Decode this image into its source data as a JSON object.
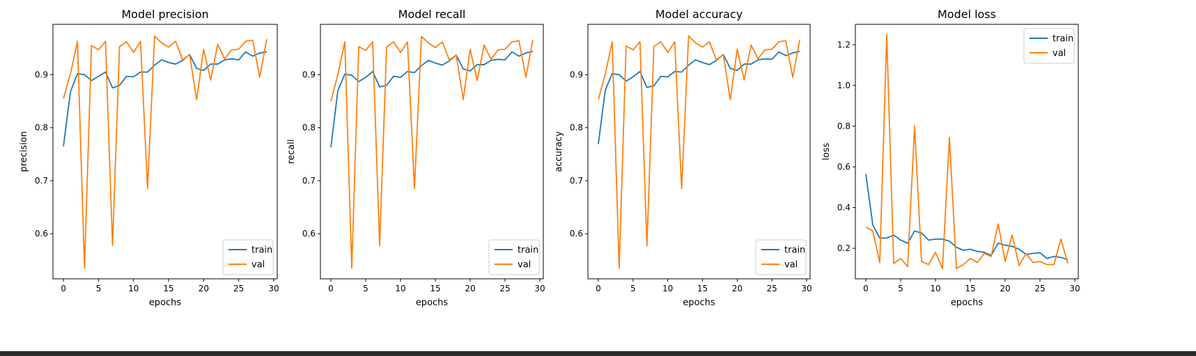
{
  "chart_data": [
    {
      "type": "line",
      "title": "Model precision",
      "xlabel": "epochs",
      "ylabel": "precision",
      "xlim": [
        -1.5,
        30.5
      ],
      "ylim": [
        0.515,
        0.995
      ],
      "xticks": [
        0,
        5,
        10,
        15,
        20,
        25,
        30
      ],
      "yticks": [
        0.6,
        0.7,
        0.8,
        0.9
      ],
      "ytick_labels": [
        "0.6",
        "0.7",
        "0.8",
        "0.9"
      ],
      "legend_position": "lower-right",
      "x": [
        0,
        1,
        2,
        3,
        4,
        5,
        6,
        7,
        8,
        9,
        10,
        11,
        12,
        13,
        14,
        15,
        16,
        17,
        18,
        19,
        20,
        21,
        22,
        23,
        24,
        25,
        26,
        27,
        28,
        29
      ],
      "series": [
        {
          "name": "train",
          "color": "#1f77b4",
          "values": [
            0.765,
            0.868,
            0.902,
            0.9,
            0.889,
            0.897,
            0.905,
            0.875,
            0.88,
            0.897,
            0.896,
            0.905,
            0.905,
            0.918,
            0.928,
            0.923,
            0.92,
            0.927,
            0.938,
            0.912,
            0.908,
            0.92,
            0.92,
            0.928,
            0.93,
            0.928,
            0.943,
            0.935,
            0.941,
            0.943
          ]
        },
        {
          "name": "val",
          "color": "#ff7f0e",
          "values": [
            0.855,
            0.902,
            0.963,
            0.535,
            0.955,
            0.947,
            0.963,
            0.578,
            0.953,
            0.962,
            0.942,
            0.963,
            0.685,
            0.973,
            0.96,
            0.952,
            0.963,
            0.928,
            0.938,
            0.853,
            0.948,
            0.89,
            0.957,
            0.93,
            0.947,
            0.948,
            0.963,
            0.965,
            0.895,
            0.967
          ]
        }
      ]
    },
    {
      "type": "line",
      "title": "Model recall",
      "xlabel": "epochs",
      "ylabel": "recall",
      "xlim": [
        -1.5,
        30.5
      ],
      "ylim": [
        0.515,
        0.995
      ],
      "xticks": [
        0,
        5,
        10,
        15,
        20,
        25,
        30
      ],
      "yticks": [
        0.6,
        0.7,
        0.8,
        0.9
      ],
      "ytick_labels": [
        "0.6",
        "0.7",
        "0.8",
        "0.9"
      ],
      "legend_position": "lower-right",
      "x": [
        0,
        1,
        2,
        3,
        4,
        5,
        6,
        7,
        8,
        9,
        10,
        11,
        12,
        13,
        14,
        15,
        16,
        17,
        18,
        19,
        20,
        21,
        22,
        23,
        24,
        25,
        26,
        27,
        28,
        29
      ],
      "series": [
        {
          "name": "train",
          "color": "#1f77b4",
          "values": [
            0.763,
            0.87,
            0.901,
            0.899,
            0.887,
            0.895,
            0.906,
            0.877,
            0.88,
            0.897,
            0.895,
            0.906,
            0.904,
            0.917,
            0.927,
            0.922,
            0.918,
            0.926,
            0.937,
            0.911,
            0.907,
            0.919,
            0.919,
            0.927,
            0.929,
            0.928,
            0.943,
            0.935,
            0.941,
            0.944
          ]
        },
        {
          "name": "val",
          "color": "#ff7f0e",
          "values": [
            0.85,
            0.9,
            0.962,
            0.535,
            0.953,
            0.946,
            0.962,
            0.578,
            0.952,
            0.962,
            0.942,
            0.962,
            0.685,
            0.972,
            0.96,
            0.951,
            0.962,
            0.928,
            0.937,
            0.853,
            0.948,
            0.889,
            0.956,
            0.929,
            0.947,
            0.948,
            0.962,
            0.964,
            0.895,
            0.966
          ]
        }
      ]
    },
    {
      "type": "line",
      "title": "Model accuracy",
      "xlabel": "epochs",
      "ylabel": "accuracy",
      "xlim": [
        -1.5,
        30.5
      ],
      "ylim": [
        0.515,
        0.995
      ],
      "xticks": [
        0,
        5,
        10,
        15,
        20,
        25,
        30
      ],
      "yticks": [
        0.6,
        0.7,
        0.8,
        0.9
      ],
      "ytick_labels": [
        "0.6",
        "0.7",
        "0.8",
        "0.9"
      ],
      "legend_position": "lower-right",
      "x": [
        0,
        1,
        2,
        3,
        4,
        5,
        6,
        7,
        8,
        9,
        10,
        11,
        12,
        13,
        14,
        15,
        16,
        17,
        18,
        19,
        20,
        21,
        22,
        23,
        24,
        25,
        26,
        27,
        28,
        29
      ],
      "series": [
        {
          "name": "train",
          "color": "#1f77b4",
          "values": [
            0.769,
            0.871,
            0.902,
            0.9,
            0.888,
            0.896,
            0.906,
            0.876,
            0.879,
            0.897,
            0.896,
            0.906,
            0.905,
            0.918,
            0.928,
            0.923,
            0.919,
            0.927,
            0.938,
            0.912,
            0.908,
            0.92,
            0.92,
            0.928,
            0.93,
            0.929,
            0.943,
            0.936,
            0.941,
            0.944
          ]
        },
        {
          "name": "val",
          "color": "#ff7f0e",
          "values": [
            0.853,
            0.901,
            0.962,
            0.535,
            0.954,
            0.947,
            0.962,
            0.577,
            0.953,
            0.962,
            0.942,
            0.962,
            0.685,
            0.973,
            0.96,
            0.952,
            0.962,
            0.928,
            0.938,
            0.853,
            0.948,
            0.89,
            0.956,
            0.93,
            0.947,
            0.948,
            0.962,
            0.964,
            0.895,
            0.966
          ]
        }
      ]
    },
    {
      "type": "line",
      "title": "Model loss",
      "xlabel": "epochs",
      "ylabel": "loss",
      "xlim": [
        -1.5,
        30.5
      ],
      "ylim": [
        0.05,
        1.3
      ],
      "xticks": [
        0,
        5,
        10,
        15,
        20,
        25,
        30
      ],
      "yticks": [
        0.2,
        0.4,
        0.6,
        0.8,
        1.0,
        1.2
      ],
      "ytick_labels": [
        "0.2",
        "0.4",
        "0.6",
        "0.8",
        "1.0",
        "1.2"
      ],
      "legend_position": "upper-right",
      "x": [
        0,
        1,
        2,
        3,
        4,
        5,
        6,
        7,
        8,
        9,
        10,
        11,
        12,
        13,
        14,
        15,
        16,
        17,
        18,
        19,
        20,
        21,
        22,
        23,
        24,
        25,
        26,
        27,
        28,
        29
      ],
      "series": [
        {
          "name": "train",
          "color": "#1f77b4",
          "values": [
            0.565,
            0.315,
            0.25,
            0.25,
            0.265,
            0.24,
            0.225,
            0.285,
            0.275,
            0.24,
            0.245,
            0.245,
            0.235,
            0.205,
            0.19,
            0.195,
            0.185,
            0.18,
            0.165,
            0.225,
            0.215,
            0.21,
            0.195,
            0.17,
            0.175,
            0.178,
            0.15,
            0.16,
            0.155,
            0.145
          ]
        },
        {
          "name": "val",
          "color": "#ff7f0e",
          "values": [
            0.305,
            0.285,
            0.13,
            1.25,
            0.125,
            0.15,
            0.11,
            0.8,
            0.135,
            0.12,
            0.18,
            0.1,
            0.745,
            0.1,
            0.12,
            0.15,
            0.13,
            0.175,
            0.16,
            0.32,
            0.135,
            0.265,
            0.115,
            0.175,
            0.13,
            0.135,
            0.12,
            0.12,
            0.245,
            0.125
          ]
        }
      ]
    }
  ]
}
